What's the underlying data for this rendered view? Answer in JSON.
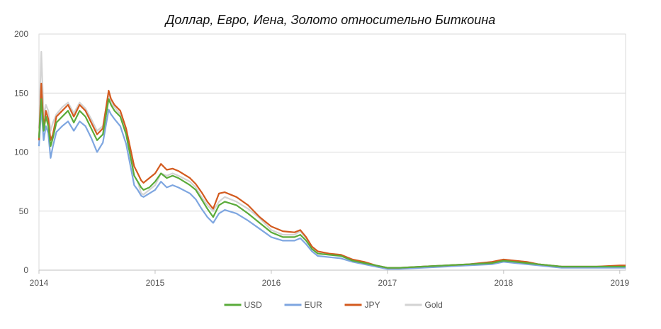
{
  "chart_data": {
    "type": "line",
    "title": "Доллар, Евро, Иена, Золото относительно Биткоина",
    "xlabel": "",
    "ylabel": "",
    "xlim": [
      2014,
      2019.05
    ],
    "ylim": [
      0,
      200
    ],
    "x_ticks": [
      "2014",
      "2015",
      "2016",
      "2017",
      "2018",
      "2019"
    ],
    "y_ticks": [
      "0",
      "50",
      "100",
      "150",
      "200"
    ],
    "grid": "horizontal",
    "legend_position": "bottom",
    "x": [
      2014.0,
      2014.02,
      2014.04,
      2014.06,
      2014.08,
      2014.1,
      2014.12,
      2014.15,
      2014.2,
      2014.25,
      2014.3,
      2014.35,
      2014.4,
      2014.45,
      2014.5,
      2014.55,
      2014.6,
      2014.62,
      2014.65,
      2014.7,
      2014.75,
      2014.8,
      2014.82,
      2014.85,
      2014.88,
      2014.9,
      2014.95,
      2015.0,
      2015.05,
      2015.1,
      2015.15,
      2015.2,
      2015.3,
      2015.35,
      2015.4,
      2015.45,
      2015.5,
      2015.55,
      2015.6,
      2015.7,
      2015.8,
      2015.9,
      2016.0,
      2016.1,
      2016.2,
      2016.25,
      2016.3,
      2016.35,
      2016.4,
      2016.5,
      2016.6,
      2016.7,
      2016.8,
      2016.9,
      2017.0,
      2017.1,
      2017.3,
      2017.5,
      2017.7,
      2017.9,
      2018.0,
      2018.1,
      2018.2,
      2018.3,
      2018.4,
      2018.5,
      2018.6,
      2018.8,
      2019.0,
      2019.05
    ],
    "series": [
      {
        "name": "USD",
        "color": "#5aab3a",
        "values": [
          112,
          145,
          118,
          130,
          122,
          105,
          112,
          125,
          130,
          135,
          125,
          135,
          130,
          120,
          110,
          115,
          145,
          140,
          135,
          130,
          115,
          90,
          80,
          75,
          70,
          68,
          70,
          75,
          82,
          78,
          80,
          78,
          72,
          68,
          60,
          52,
          45,
          55,
          58,
          55,
          48,
          40,
          32,
          28,
          28,
          30,
          25,
          18,
          14,
          13,
          12,
          8,
          6,
          4,
          2,
          2,
          3,
          4,
          5,
          6,
          8,
          7,
          6,
          5,
          4,
          3,
          3,
          3,
          3,
          3
        ]
      },
      {
        "name": "EUR",
        "color": "#7ea6e0",
        "values": [
          105,
          138,
          110,
          122,
          116,
          95,
          105,
          117,
          122,
          126,
          118,
          126,
          122,
          112,
          100,
          108,
          136,
          132,
          128,
          122,
          107,
          82,
          72,
          68,
          63,
          62,
          65,
          68,
          75,
          70,
          72,
          70,
          65,
          60,
          52,
          45,
          40,
          48,
          51,
          48,
          42,
          35,
          28,
          25,
          25,
          27,
          22,
          16,
          12,
          11,
          10,
          7,
          5,
          3,
          1,
          1,
          2,
          3,
          4,
          5,
          7,
          6,
          5,
          4,
          3,
          2,
          2,
          2,
          2,
          2
        ]
      },
      {
        "name": "JPY",
        "color": "#d35a1e",
        "values": [
          110,
          158,
          120,
          135,
          128,
          110,
          115,
          130,
          135,
          140,
          130,
          140,
          135,
          125,
          115,
          120,
          152,
          145,
          140,
          135,
          120,
          97,
          88,
          82,
          76,
          74,
          78,
          82,
          90,
          85,
          86,
          84,
          78,
          73,
          66,
          58,
          52,
          65,
          66,
          62,
          55,
          45,
          37,
          33,
          32,
          34,
          28,
          20,
          16,
          14,
          13,
          9,
          7,
          4,
          2,
          2,
          3,
          4,
          5,
          7,
          9,
          8,
          7,
          5,
          4,
          3,
          3,
          3,
          4,
          4
        ]
      },
      {
        "name": "Gold",
        "color": "#d3d3d3",
        "values": [
          120,
          185,
          130,
          140,
          135,
          118,
          125,
          132,
          138,
          142,
          133,
          142,
          137,
          128,
          118,
          122,
          150,
          142,
          138,
          132,
          118,
          92,
          80,
          75,
          65,
          64,
          68,
          72,
          82,
          80,
          82,
          80,
          75,
          70,
          62,
          55,
          50,
          58,
          62,
          58,
          52,
          44,
          34,
          30,
          30,
          33,
          27,
          20,
          15,
          14,
          13,
          9,
          6,
          4,
          2,
          2,
          3,
          4,
          5,
          7,
          9,
          8,
          7,
          5,
          4,
          3,
          3,
          3,
          3,
          3
        ]
      }
    ]
  }
}
